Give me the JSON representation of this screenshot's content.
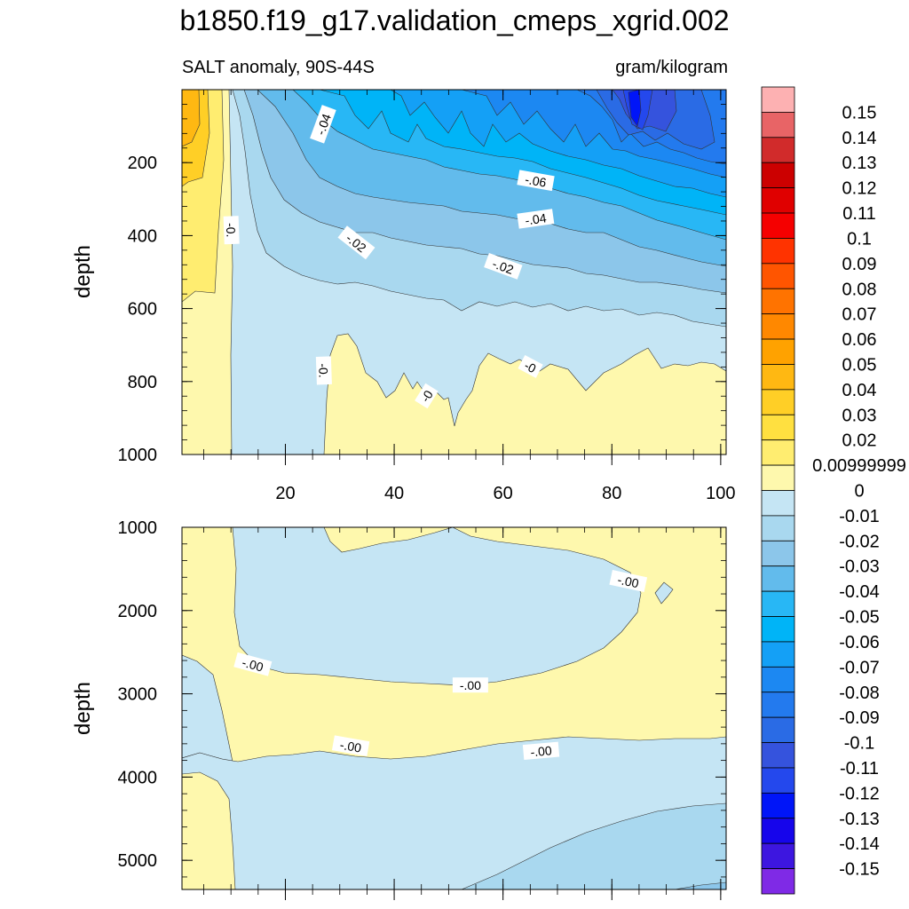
{
  "figure": {
    "title": "b1850.f19_g17.validation_cmeps_xgrid.002",
    "subtitle_left": "SALT anomaly, 90S-44S",
    "subtitle_right": "gram/kilogram"
  },
  "chart_data": [
    {
      "type": "heatmap",
      "panel": "upper",
      "ylabel": "depth",
      "xlim": [
        1,
        101
      ],
      "ylim": [
        1000,
        0
      ],
      "x_ticks": [
        20,
        40,
        60,
        80,
        100
      ],
      "y_ticks": [
        200,
        400,
        600,
        800,
        1000
      ],
      "grid": false,
      "contour_labels": [
        {
          "text": "-.04",
          "x": 27,
          "y": 95,
          "angle": -70
        },
        {
          "text": "-.06",
          "x": 66,
          "y": 250,
          "angle": 10
        },
        {
          "text": "-.04",
          "x": 66,
          "y": 355,
          "angle": -8
        },
        {
          "text": "-.02",
          "x": 33,
          "y": 420,
          "angle": 38
        },
        {
          "text": "-.02",
          "x": 60,
          "y": 485,
          "angle": 20
        },
        {
          "text": "-0.",
          "x": 10,
          "y": 385,
          "angle": 88
        },
        {
          "text": "-0.",
          "x": 27,
          "y": 770,
          "angle": 88
        },
        {
          "text": "-0",
          "x": 46,
          "y": 840,
          "angle": -58
        },
        {
          "text": "-0",
          "x": 65,
          "y": 760,
          "angle": 28
        }
      ]
    },
    {
      "type": "heatmap",
      "panel": "lower",
      "ylabel": "depth",
      "xlim": [
        1,
        101
      ],
      "ylim": [
        5350,
        1000
      ],
      "y_ticks": [
        1000,
        2000,
        3000,
        4000,
        5000
      ],
      "grid": false,
      "contour_labels": [
        {
          "text": "-.00",
          "x": 83,
          "y": 1650,
          "angle": 12
        },
        {
          "text": "-.00",
          "x": 14,
          "y": 2650,
          "angle": 15
        },
        {
          "text": "-.00",
          "x": 54,
          "y": 2900,
          "angle": 0
        },
        {
          "text": "-.00",
          "x": 32,
          "y": 3630,
          "angle": 10
        },
        {
          "text": "-.00",
          "x": 67,
          "y": 3690,
          "angle": -5
        }
      ]
    }
  ],
  "colorbar": {
    "labels": [
      "0.15",
      "0.14",
      "0.13",
      "0.12",
      "0.11",
      "0.1",
      "0.09",
      "0.08",
      "0.07",
      "0.06",
      "0.05",
      "0.04",
      "0.03",
      "0.02",
      "0.00999999",
      "0",
      "-0.01",
      "-0.02",
      "-0.03",
      "-0.04",
      "-0.05",
      "-0.06",
      "-0.07",
      "-0.08",
      "-0.09",
      "-0.1",
      "-0.11",
      "-0.12",
      "-0.13",
      "-0.14",
      "-0.15"
    ],
    "colors": [
      "#fdb1b2",
      "#e86466",
      "#d12b2b",
      "#cc0000",
      "#e00000",
      "#f50000",
      "#ff3300",
      "#ff5500",
      "#ff7300",
      "#ff8800",
      "#ffa200",
      "#ffb812",
      "#ffcf26",
      "#ffe040",
      "#ffed70",
      "#fef8ad",
      "#c5e5f4",
      "#a9d8ef",
      "#8cc6ea",
      "#62bbec",
      "#28b7f5",
      "#00b4f7",
      "#14a0f6",
      "#1c88f2",
      "#237aee",
      "#2a6be5",
      "#3553dd",
      "#2448ed",
      "#0015f8",
      "#1605eb",
      "#3d16e0",
      "#7f2ae6"
    ]
  }
}
